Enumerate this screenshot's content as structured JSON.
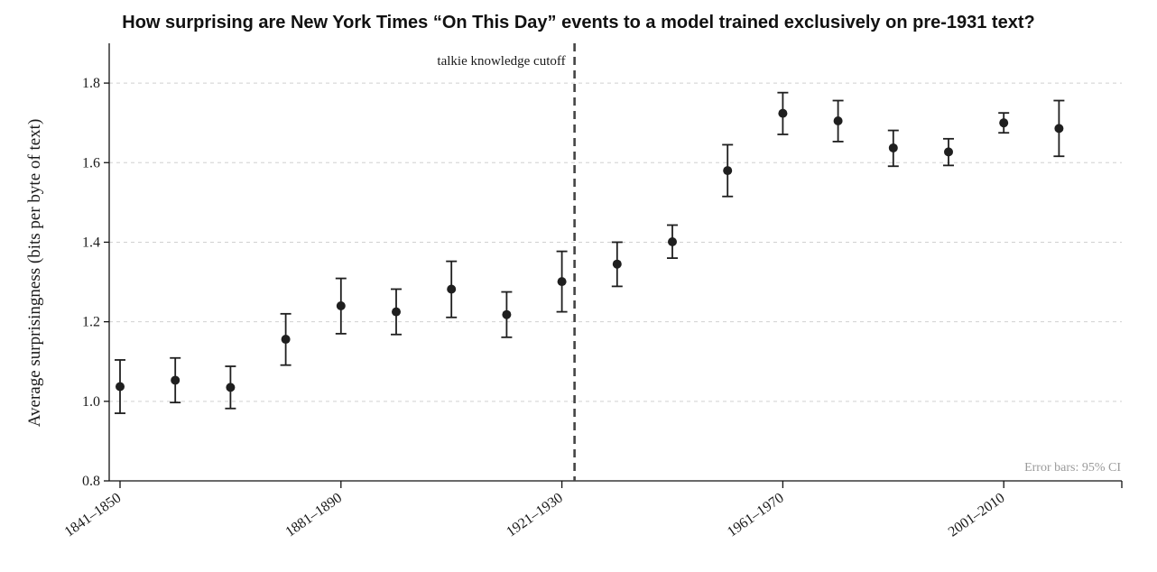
{
  "chart_data": {
    "type": "scatter",
    "title": "How surprising are New York Times “On This Day” events to a model trained exclusively on pre-1931 text?",
    "ylabel": "Average surprisingness (bits per byte of text)",
    "xlabel": "",
    "ylim": [
      0.8,
      1.9
    ],
    "yticks": [
      0.8,
      1.0,
      1.2,
      1.4,
      1.6,
      1.8
    ],
    "grid": "horizontal dashed",
    "xtick_labels": [
      "1841–1850",
      "1881–1890",
      "1921–1930",
      "1961–1970",
      "2001–2010"
    ],
    "points": [
      {
        "period": "1841–1850",
        "value": 1.037,
        "ci_low": 0.97,
        "ci_high": 1.104
      },
      {
        "period": "1851–1860",
        "value": 1.053,
        "ci_low": 0.997,
        "ci_high": 1.109
      },
      {
        "period": "1861–1870",
        "value": 1.035,
        "ci_low": 0.982,
        "ci_high": 1.088
      },
      {
        "period": "1871–1880",
        "value": 1.156,
        "ci_low": 1.091,
        "ci_high": 1.22
      },
      {
        "period": "1881–1890",
        "value": 1.24,
        "ci_low": 1.17,
        "ci_high": 1.309
      },
      {
        "period": "1891–1900",
        "value": 1.225,
        "ci_low": 1.168,
        "ci_high": 1.282
      },
      {
        "period": "1901–1910",
        "value": 1.282,
        "ci_low": 1.211,
        "ci_high": 1.352
      },
      {
        "period": "1911–1920",
        "value": 1.218,
        "ci_low": 1.161,
        "ci_high": 1.275
      },
      {
        "period": "1921–1930",
        "value": 1.301,
        "ci_low": 1.225,
        "ci_high": 1.377
      },
      {
        "period": "1931–1940",
        "value": 1.345,
        "ci_low": 1.289,
        "ci_high": 1.4
      },
      {
        "period": "1941–1950",
        "value": 1.401,
        "ci_low": 1.36,
        "ci_high": 1.443
      },
      {
        "period": "1951–1960",
        "value": 1.58,
        "ci_low": 1.515,
        "ci_high": 1.645
      },
      {
        "period": "1961–1970",
        "value": 1.724,
        "ci_low": 1.671,
        "ci_high": 1.776
      },
      {
        "period": "1971–1980",
        "value": 1.705,
        "ci_low": 1.653,
        "ci_high": 1.756
      },
      {
        "period": "1981–1990",
        "value": 1.637,
        "ci_low": 1.591,
        "ci_high": 1.681
      },
      {
        "period": "1991–2000",
        "value": 1.627,
        "ci_low": 1.593,
        "ci_high": 1.66
      },
      {
        "period": "2001–2010",
        "value": 1.7,
        "ci_low": 1.675,
        "ci_high": 1.725
      },
      {
        "period": "2011–2020",
        "value": 1.686,
        "ci_low": 1.616,
        "ci_high": 1.756
      }
    ],
    "cutoff": {
      "after_period": "1921–1930",
      "label": "talkie knowledge cutoff"
    },
    "annotation": "Error bars: 95% CI",
    "colors": {
      "points": "#1f1f1f",
      "cutoff_line": "#444444",
      "grid": "#d0d0d0"
    }
  }
}
